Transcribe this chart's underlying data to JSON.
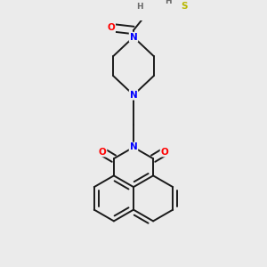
{
  "background_color": "#ebebeb",
  "bond_color": "#1a1a1a",
  "atom_colors": {
    "N": "#0000ff",
    "O": "#ff0000",
    "S": "#b8b800",
    "C": "#1a1a1a",
    "H": "#6a6a6a"
  },
  "figsize": [
    3.0,
    3.0
  ],
  "dpi": 100
}
